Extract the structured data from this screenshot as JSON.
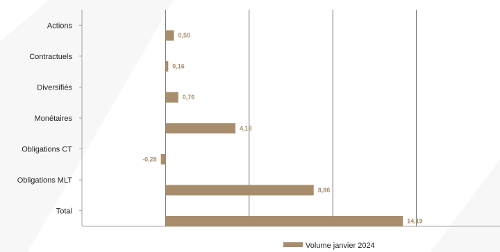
{
  "chart_data": {
    "type": "bar",
    "orientation": "horizontal",
    "categories": [
      "Actions",
      "Contractuels",
      "Diversifiés",
      "Monétaires",
      "Obligations CT",
      "Obligations MLT",
      "Total"
    ],
    "series": [
      {
        "name": "Volume janvier 2024",
        "values": [
          0.5,
          0.16,
          0.76,
          4.18,
          -0.28,
          8.86,
          14.19
        ],
        "value_labels": [
          "0,50",
          "0,16",
          "0,76",
          "4,18",
          "-0,28",
          "8,86",
          "14,19"
        ]
      }
    ],
    "xlim": [
      -5,
      20
    ],
    "grid": true,
    "legend": "bottom",
    "colors": {
      "bar": "#a78d6c",
      "label": "#a78d6c",
      "grid": "#555555",
      "axis": "#888888",
      "text": "#222222"
    }
  }
}
